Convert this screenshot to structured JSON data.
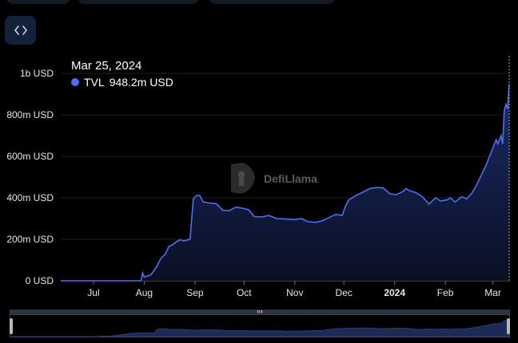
{
  "toolbar": {
    "embed_icon": "code-icon"
  },
  "tooltip": {
    "date": "Mar 25, 2024",
    "series": "TVL",
    "value": "948.2m USD",
    "dot_color": "#4f6ef2"
  },
  "watermark": "DefiLlama",
  "chart_data": {
    "type": "area",
    "x_unit": "date",
    "y_unit": "USD",
    "yticks": [
      {
        "value": 0,
        "label": "0 USD"
      },
      {
        "value": 200,
        "label": "200m USD"
      },
      {
        "value": 400,
        "label": "400m USD"
      },
      {
        "value": 600,
        "label": "600m USD"
      },
      {
        "value": 800,
        "label": "800m USD"
      },
      {
        "value": 1000,
        "label": "1b USD"
      }
    ],
    "xticks": [
      {
        "date": "2023-07-15",
        "label": "Jul",
        "bold": false
      },
      {
        "date": "2023-08-15",
        "label": "Aug",
        "bold": false
      },
      {
        "date": "2023-09-15",
        "label": "Sep",
        "bold": false
      },
      {
        "date": "2023-10-15",
        "label": "Oct",
        "bold": false
      },
      {
        "date": "2023-11-15",
        "label": "Nov",
        "bold": false
      },
      {
        "date": "2023-12-15",
        "label": "Dec",
        "bold": false
      },
      {
        "date": "2024-01-15",
        "label": "2024",
        "bold": true
      },
      {
        "date": "2024-02-15",
        "label": "Feb",
        "bold": false
      },
      {
        "date": "2024-03-15",
        "label": "Mar",
        "bold": false
      }
    ],
    "ylim": [
      0,
      1000
    ],
    "xlim": [
      "2023-06-25",
      "2024-03-25"
    ],
    "grid": true,
    "color": "#4f6ef2",
    "series": [
      {
        "name": "TVL",
        "points": [
          [
            "2023-06-25",
            0
          ],
          [
            "2023-08-13",
            0
          ],
          [
            "2023-08-14",
            38
          ],
          [
            "2023-08-15",
            18
          ],
          [
            "2023-08-19",
            28
          ],
          [
            "2023-08-22",
            60
          ],
          [
            "2023-08-25",
            105
          ],
          [
            "2023-08-28",
            130
          ],
          [
            "2023-08-30",
            165
          ],
          [
            "2023-09-01",
            172
          ],
          [
            "2023-09-04",
            190
          ],
          [
            "2023-09-06",
            198
          ],
          [
            "2023-09-08",
            192
          ],
          [
            "2023-09-12",
            200
          ],
          [
            "2023-09-14",
            395
          ],
          [
            "2023-09-16",
            412
          ],
          [
            "2023-09-18",
            410
          ],
          [
            "2023-09-20",
            380
          ],
          [
            "2023-09-24",
            375
          ],
          [
            "2023-09-28",
            372
          ],
          [
            "2023-10-02",
            340
          ],
          [
            "2023-10-06",
            338
          ],
          [
            "2023-10-10",
            355
          ],
          [
            "2023-10-14",
            350
          ],
          [
            "2023-10-18",
            342
          ],
          [
            "2023-10-21",
            310
          ],
          [
            "2023-10-26",
            308
          ],
          [
            "2023-10-30",
            315
          ],
          [
            "2023-11-04",
            300
          ],
          [
            "2023-11-10",
            298
          ],
          [
            "2023-11-15",
            295
          ],
          [
            "2023-11-19",
            300
          ],
          [
            "2023-11-23",
            285
          ],
          [
            "2023-11-28",
            282
          ],
          [
            "2023-12-02",
            290
          ],
          [
            "2023-12-06",
            305
          ],
          [
            "2023-12-10",
            320
          ],
          [
            "2023-12-14",
            315
          ],
          [
            "2023-12-16",
            360
          ],
          [
            "2023-12-18",
            390
          ],
          [
            "2023-12-22",
            410
          ],
          [
            "2023-12-26",
            425
          ],
          [
            "2023-12-31",
            445
          ],
          [
            "2024-01-04",
            450
          ],
          [
            "2024-01-08",
            448
          ],
          [
            "2024-01-12",
            420
          ],
          [
            "2024-01-16",
            415
          ],
          [
            "2024-01-20",
            430
          ],
          [
            "2024-01-22",
            445
          ],
          [
            "2024-01-24",
            435
          ],
          [
            "2024-01-28",
            425
          ],
          [
            "2024-02-01",
            405
          ],
          [
            "2024-02-05",
            370
          ],
          [
            "2024-02-09",
            400
          ],
          [
            "2024-02-12",
            385
          ],
          [
            "2024-02-16",
            390
          ],
          [
            "2024-02-18",
            400
          ],
          [
            "2024-02-21",
            380
          ],
          [
            "2024-02-25",
            405
          ],
          [
            "2024-02-28",
            395
          ],
          [
            "2024-03-02",
            420
          ],
          [
            "2024-03-05",
            460
          ],
          [
            "2024-03-08",
            510
          ],
          [
            "2024-03-11",
            560
          ],
          [
            "2024-03-13",
            600
          ],
          [
            "2024-03-15",
            640
          ],
          [
            "2024-03-17",
            680
          ],
          [
            "2024-03-18",
            660
          ],
          [
            "2024-03-20",
            700
          ],
          [
            "2024-03-21",
            660
          ],
          [
            "2024-03-22",
            820
          ],
          [
            "2024-03-23",
            850
          ],
          [
            "2024-03-24",
            830
          ],
          [
            "2024-03-25",
            948.2
          ]
        ]
      }
    ]
  }
}
